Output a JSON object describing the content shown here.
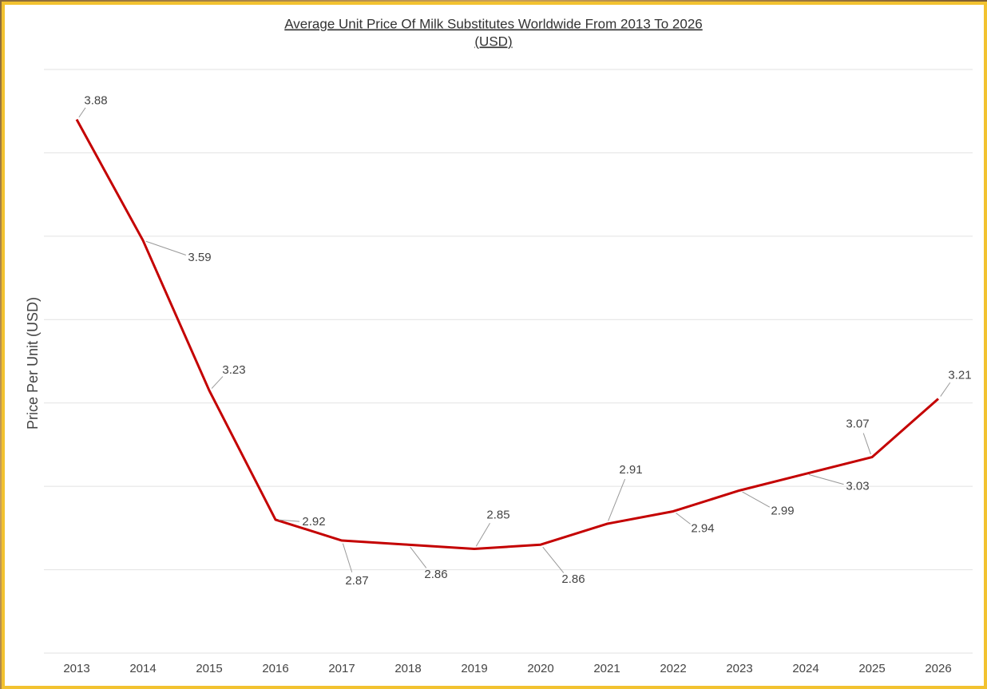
{
  "chart_data": {
    "type": "line",
    "title": [
      "Average Unit Price Of Milk Substitutes Worldwide From 2013 To 2026",
      "(USD)"
    ],
    "y_label": "Price Per Unit (USD)",
    "categories": [
      "2013",
      "2014",
      "2015",
      "2016",
      "2017",
      "2018",
      "2019",
      "2020",
      "2021",
      "2022",
      "2023",
      "2024",
      "2025",
      "2026"
    ],
    "series": [
      {
        "name": "Price Per Unit (USD)",
        "color": "#c40000",
        "values": [
          3.88,
          3.59,
          3.23,
          2.92,
          2.87,
          2.86,
          2.85,
          2.86,
          2.91,
          2.94,
          2.99,
          3.03,
          3.07,
          3.21
        ]
      }
    ],
    "ylim": [
      2.6,
      4.0
    ],
    "yticks": [
      2.6,
      2.8,
      3.0,
      3.2,
      3.4,
      3.6,
      3.8,
      4.0
    ],
    "show_ytick_labels": false,
    "grid": true,
    "data_labels": true
  }
}
